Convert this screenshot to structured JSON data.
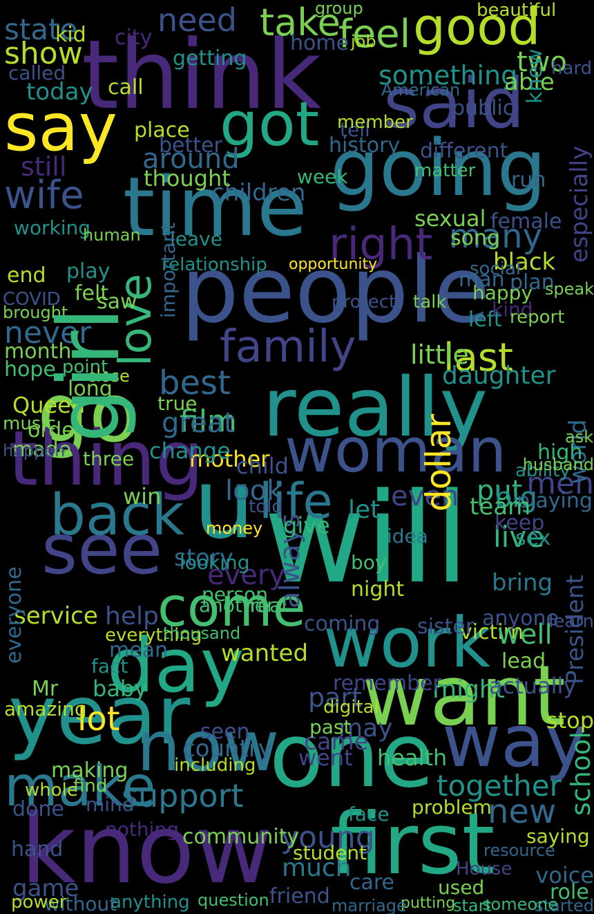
{
  "words": [
    {
      "text": "think",
      "color": "#482878"
    },
    {
      "text": "good",
      "color": "#b5de2b"
    },
    {
      "text": "said",
      "color": "#414487"
    },
    {
      "text": "say",
      "color": "#fde725"
    },
    {
      "text": "got",
      "color": "#22a884"
    },
    {
      "text": "going",
      "color": "#2a788e"
    },
    {
      "text": "time",
      "color": "#2a788e"
    },
    {
      "text": "people",
      "color": "#3b528b"
    },
    {
      "text": "girl",
      "color": "#35b779"
    },
    {
      "text": "love",
      "color": "#35b779"
    },
    {
      "text": "really",
      "color": "#21918c"
    },
    {
      "text": "go",
      "color": "#7ad151"
    },
    {
      "text": "thing",
      "color": "#482878"
    },
    {
      "text": "woman",
      "color": "#3b528b"
    },
    {
      "text": "will",
      "color": "#22a884"
    },
    {
      "text": "see",
      "color": "#414487"
    },
    {
      "text": "back",
      "color": "#2a788e"
    },
    {
      "text": "u",
      "color": "#21918c"
    },
    {
      "text": "day",
      "color": "#22a884"
    },
    {
      "text": "work",
      "color": "#21918c"
    },
    {
      "text": "want",
      "color": "#7ad151"
    },
    {
      "text": "year",
      "color": "#21918c"
    },
    {
      "text": "one",
      "color": "#22a884"
    },
    {
      "text": "way",
      "color": "#3b528b"
    },
    {
      "text": "now",
      "color": "#2a788e"
    },
    {
      "text": "know",
      "color": "#482878"
    },
    {
      "text": "first",
      "color": "#22a884"
    },
    {
      "text": "make",
      "color": "#2a788e"
    },
    {
      "text": "come",
      "color": "#44bf70"
    },
    {
      "text": "family",
      "color": "#414487"
    },
    {
      "text": "life",
      "color": "#2a788e"
    },
    {
      "text": "wife",
      "color": "#3b528b"
    },
    {
      "text": "state",
      "color": "#31688e"
    },
    {
      "text": "need",
      "color": "#3b528b"
    },
    {
      "text": "take",
      "color": "#7ad151"
    },
    {
      "text": "feel",
      "color": "#7ad151"
    },
    {
      "text": "show",
      "color": "#b5de2b"
    },
    {
      "text": "two",
      "color": "#7ad151"
    },
    {
      "text": "something",
      "color": "#21918c"
    },
    {
      "text": "today",
      "color": "#21918c"
    },
    {
      "text": "right",
      "color": "#482878"
    },
    {
      "text": "many",
      "color": "#31688e"
    },
    {
      "text": "children",
      "color": "#31688e"
    },
    {
      "text": "around",
      "color": "#31688e"
    },
    {
      "text": "thought",
      "color": "#7ad151"
    },
    {
      "text": "still",
      "color": "#482878"
    },
    {
      "text": "place",
      "color": "#b5de2b"
    },
    {
      "text": "better",
      "color": "#3b528b"
    },
    {
      "text": "different",
      "color": "#3b528b"
    },
    {
      "text": "matter",
      "color": "#44bf70"
    },
    {
      "text": "never",
      "color": "#31688e"
    },
    {
      "text": "last",
      "color": "#b5de2b"
    },
    {
      "text": "little",
      "color": "#7ad151"
    },
    {
      "text": "best",
      "color": "#31688e"
    },
    {
      "text": "film",
      "color": "#44bf70"
    },
    {
      "text": "great",
      "color": "#31688e"
    },
    {
      "text": "daughter",
      "color": "#21918c"
    },
    {
      "text": "mother",
      "color": "#fde725"
    },
    {
      "text": "child",
      "color": "#3b528b"
    },
    {
      "text": "look",
      "color": "#31688e"
    },
    {
      "text": "men",
      "color": "#414487"
    },
    {
      "text": "put",
      "color": "#35b779"
    },
    {
      "text": "big",
      "color": "#21918c"
    },
    {
      "text": "even",
      "color": "#414487"
    },
    {
      "text": "dollar",
      "color": "#fde725"
    },
    {
      "text": "let",
      "color": "#21918c"
    },
    {
      "text": "live",
      "color": "#35b779"
    },
    {
      "text": "every",
      "color": "#482878"
    },
    {
      "text": "lot",
      "color": "#fde725"
    },
    {
      "text": "wanted",
      "color": "#b5de2b"
    },
    {
      "text": "help",
      "color": "#3b528b"
    },
    {
      "text": "service",
      "color": "#b5de2b"
    },
    {
      "text": "always",
      "color": "#3b528b"
    },
    {
      "text": "part",
      "color": "#3b528b"
    },
    {
      "text": "might",
      "color": "#35b779"
    },
    {
      "text": "may",
      "color": "#3b528b"
    },
    {
      "text": "came",
      "color": "#414487"
    },
    {
      "text": "health",
      "color": "#44bf70"
    },
    {
      "text": "support",
      "color": "#2a788e"
    },
    {
      "text": "young",
      "color": "#3b528b"
    },
    {
      "text": "much",
      "color": "#2a788e"
    },
    {
      "text": "together",
      "color": "#21918c"
    },
    {
      "text": "new",
      "color": "#31688e"
    },
    {
      "text": "country",
      "color": "#31688e"
    },
    {
      "text": "story",
      "color": "#31688e"
    },
    {
      "text": "person",
      "color": "#44bf70"
    },
    {
      "text": "bring",
      "color": "#2a788e"
    },
    {
      "text": "coming",
      "color": "#3b528b"
    },
    {
      "text": "school",
      "color": "#35b779"
    },
    {
      "text": "game",
      "color": "#3b528b"
    },
    {
      "text": "friend",
      "color": "#3b528b"
    },
    {
      "text": "care",
      "color": "#31688e"
    },
    {
      "text": "without",
      "color": "#31688e"
    },
    {
      "text": "anything",
      "color": "#21918c"
    },
    {
      "text": "question",
      "color": "#44bf70"
    },
    {
      "text": "started",
      "color": "#31688e"
    },
    {
      "text": "black",
      "color": "#b5de2b"
    },
    {
      "text": "opportunity",
      "color": "#fde725"
    },
    {
      "text": "relationship",
      "color": "#21918c"
    },
    {
      "text": "sexual",
      "color": "#7ad151"
    },
    {
      "text": "working",
      "color": "#21918c"
    },
    {
      "text": "female",
      "color": "#3b528b"
    },
    {
      "text": "home",
      "color": "#3b528b"
    },
    {
      "text": "beautiful",
      "color": "#b5de2b"
    },
    {
      "text": "history",
      "color": "#31688e"
    },
    {
      "text": "week",
      "color": "#35b779"
    },
    {
      "text": "saw",
      "color": "#7ad151"
    },
    {
      "text": "felt",
      "color": "#7ad151"
    },
    {
      "text": "play",
      "color": "#21918c"
    },
    {
      "text": "month",
      "color": "#7ad151"
    },
    {
      "text": "hope",
      "color": "#44bf70"
    },
    {
      "text": "Queen",
      "color": "#b5de2b"
    },
    {
      "text": "order",
      "color": "#7ad151"
    },
    {
      "text": "made",
      "color": "#7ad151"
    },
    {
      "text": "three",
      "color": "#7ad151"
    },
    {
      "text": "world",
      "color": "#31688e"
    },
    {
      "text": "playing",
      "color": "#31688e"
    },
    {
      "text": "high",
      "color": "#35b779"
    },
    {
      "text": "ask",
      "color": "#7ad151"
    },
    {
      "text": "stop",
      "color": "#b5de2b"
    },
    {
      "text": "actually",
      "color": "#3b528b"
    },
    {
      "text": "remember",
      "color": "#414487"
    },
    {
      "text": "amazing",
      "color": "#b5de2b"
    },
    {
      "text": "everyone",
      "color": "#31688e"
    },
    {
      "text": "making",
      "color": "#7ad151"
    },
    {
      "text": "whole",
      "color": "#b5de2b"
    },
    {
      "text": "done",
      "color": "#3b528b"
    },
    {
      "text": "hand",
      "color": "#3b528b"
    },
    {
      "text": "power",
      "color": "#b5de2b"
    },
    {
      "text": "mean",
      "color": "#31688e"
    },
    {
      "text": "baby",
      "color": "#35b779"
    },
    {
      "text": "fact",
      "color": "#21918c"
    },
    {
      "text": "Mr",
      "color": "#7ad151"
    },
    {
      "text": "money",
      "color": "#fde725"
    },
    {
      "text": "looking",
      "color": "#21918c"
    },
    {
      "text": "another",
      "color": "#44bf70"
    },
    {
      "text": "real",
      "color": "#44bf70"
    },
    {
      "text": "give",
      "color": "#35b779"
    },
    {
      "text": "told",
      "color": "#3b528b"
    },
    {
      "text": "idea",
      "color": "#2a788e"
    },
    {
      "text": "boy",
      "color": "#44bf70"
    },
    {
      "text": "night",
      "color": "#b5de2b"
    },
    {
      "text": "sex",
      "color": "#21918c"
    },
    {
      "text": "keep",
      "color": "#414487"
    },
    {
      "text": "team",
      "color": "#44bf70"
    },
    {
      "text": "victim",
      "color": "#b5de2b"
    },
    {
      "text": "lead",
      "color": "#7ad151"
    },
    {
      "text": "President",
      "color": "#3b528b"
    },
    {
      "text": "well",
      "color": "#44bf70"
    },
    {
      "text": "sister",
      "color": "#3b528b"
    },
    {
      "text": "everything",
      "color": "#b5de2b"
    },
    {
      "text": "thousand",
      "color": "#44bf70"
    },
    {
      "text": "community",
      "color": "#7ad151"
    },
    {
      "text": "nothing",
      "color": "#482878"
    },
    {
      "text": "mind",
      "color": "#3b528b"
    },
    {
      "text": "student",
      "color": "#b5de2b"
    },
    {
      "text": "face",
      "color": "#21918c"
    },
    {
      "text": "problem",
      "color": "#b5de2b"
    },
    {
      "text": "someone",
      "color": "#35b779"
    },
    {
      "text": "start",
      "color": "#35b779"
    },
    {
      "text": "used",
      "color": "#7ad151"
    },
    {
      "text": "House",
      "color": "#414487"
    },
    {
      "text": "voice",
      "color": "#31688e"
    },
    {
      "text": "role",
      "color": "#44bf70"
    },
    {
      "text": "saying",
      "color": "#b5de2b"
    },
    {
      "text": "resource",
      "color": "#31688e"
    },
    {
      "text": "putting",
      "color": "#7ad151"
    },
    {
      "text": "marriage",
      "color": "#31688e"
    },
    {
      "text": "kid",
      "color": "#b5de2b"
    },
    {
      "text": "city",
      "color": "#482878"
    },
    {
      "text": "getting",
      "color": "#21918c"
    },
    {
      "text": "called",
      "color": "#3b528b"
    },
    {
      "text": "call",
      "color": "#b5de2b"
    },
    {
      "text": "able",
      "color": "#7ad151"
    },
    {
      "text": "public",
      "color": "#3b528b"
    },
    {
      "text": "hard",
      "color": "#3b528b"
    },
    {
      "text": "knew",
      "color": "#21918c"
    },
    {
      "text": "tell",
      "color": "#3b528b"
    },
    {
      "text": "end",
      "color": "#b5de2b"
    },
    {
      "text": "brought",
      "color": "#7ad151"
    },
    {
      "text": "point",
      "color": "#44bf70"
    },
    {
      "text": "long",
      "color": "#7ad151"
    },
    {
      "text": "true",
      "color": "#7ad151"
    },
    {
      "text": "change",
      "color": "#21918c"
    },
    {
      "text": "close",
      "color": "#b5de2b"
    },
    {
      "text": "American",
      "color": "#31688e"
    },
    {
      "text": "song",
      "color": "#7ad151"
    },
    {
      "text": "plan",
      "color": "#31688e"
    },
    {
      "text": "man",
      "color": "#31688e"
    },
    {
      "text": "happy",
      "color": "#7ad151"
    },
    {
      "text": "talk",
      "color": "#7ad151"
    },
    {
      "text": "left",
      "color": "#21918c"
    },
    {
      "text": "kind",
      "color": "#482878"
    },
    {
      "text": "report",
      "color": "#7ad151"
    },
    {
      "text": "leave",
      "color": "#21918c"
    },
    {
      "text": "especially",
      "color": "#414487"
    },
    {
      "text": "protect",
      "color": "#3b528b"
    },
    {
      "text": "social",
      "color": "#31688e"
    },
    {
      "text": "speak",
      "color": "#7ad151"
    },
    {
      "text": "run",
      "color": "#31688e"
    },
    {
      "text": "COVID",
      "color": "#3b528b"
    },
    {
      "text": "human",
      "color": "#7ad151"
    },
    {
      "text": "important",
      "color": "#31688e"
    },
    {
      "text": "music",
      "color": "#7ad151"
    },
    {
      "text": "happen",
      "color": "#3b528b"
    },
    {
      "text": "ability",
      "color": "#21918c"
    },
    {
      "text": "husband",
      "color": "#7ad151"
    },
    {
      "text": "win",
      "color": "#7ad151"
    },
    {
      "text": "job",
      "color": "#b5de2b"
    },
    {
      "text": "group",
      "color": "#7ad151"
    },
    {
      "text": "member",
      "color": "#b5de2b"
    },
    {
      "text": "seen",
      "color": "#3b528b"
    },
    {
      "text": "past",
      "color": "#7ad151"
    },
    {
      "text": "digital",
      "color": "#b5de2b"
    },
    {
      "text": "went",
      "color": "#414487"
    },
    {
      "text": "including",
      "color": "#b5de2b"
    },
    {
      "text": "find",
      "color": "#7ad151"
    },
    {
      "text": "learn",
      "color": "#3b528b"
    },
    {
      "text": "anyone",
      "color": "#3b528b"
    },
    {
      "text": "girl",
      "color": "#35b779"
    }
  ]
}
